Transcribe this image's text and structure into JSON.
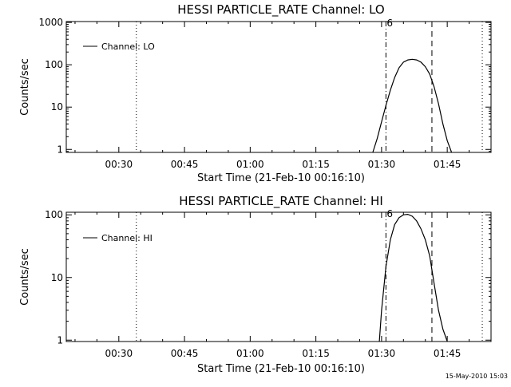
{
  "footer": {
    "timestamp": "15-May-2010 15:03"
  },
  "chart_data": [
    {
      "type": "line",
      "title": "HESSI PARTICLE_RATE Channel: LO",
      "xlabel": "Start Time (21-Feb-10 00:16:10)",
      "ylabel": "Counts/sec",
      "yscale": "log",
      "ylim": [
        0.85,
        1050
      ],
      "xlim_minutes": [
        18,
        115
      ],
      "x_ticks": [
        {
          "minute": 30,
          "label": "00:30"
        },
        {
          "minute": 45,
          "label": "00:45"
        },
        {
          "minute": 60,
          "label": "01:00"
        },
        {
          "minute": 75,
          "label": "01:15"
        },
        {
          "minute": 90,
          "label": "01:30"
        },
        {
          "minute": 105,
          "label": "01:45"
        }
      ],
      "y_ticks": [
        {
          "value": 1,
          "label": "1"
        },
        {
          "value": 10,
          "label": "10"
        },
        {
          "value": 100,
          "label": "100"
        },
        {
          "value": 1000,
          "label": "1000"
        }
      ],
      "marker_label": "6",
      "legend": "top-left",
      "series": [
        {
          "name": "Channel: LO",
          "x": [
            88.0,
            89.0,
            90.0,
            91.0,
            92.0,
            93.0,
            94.0,
            95.0,
            96.0,
            97.0,
            98.0,
            99.0,
            100.0,
            101.0,
            102.0,
            103.0,
            104.0,
            105.0,
            106.0
          ],
          "y": [
            0.85,
            1.8,
            4.5,
            11,
            25,
            50,
            85,
            115,
            130,
            135,
            130,
            115,
            90,
            60,
            30,
            12,
            4,
            1.6,
            0.85
          ]
        }
      ],
      "vlines": [
        {
          "minute": 34,
          "style": "dotted"
        },
        {
          "minute": 91,
          "style": "dashdot"
        },
        {
          "minute": 101.5,
          "style": "dashed"
        },
        {
          "minute": 113,
          "style": "dotted"
        }
      ]
    },
    {
      "type": "line",
      "title": "HESSI PARTICLE_RATE Channel: HI",
      "xlabel": "Start Time (21-Feb-10 00:16:10)",
      "ylabel": "Counts/sec",
      "yscale": "log",
      "ylim": [
        0.95,
        110
      ],
      "xlim_minutes": [
        18,
        115
      ],
      "x_ticks": [
        {
          "minute": 30,
          "label": "00:30"
        },
        {
          "minute": 45,
          "label": "00:45"
        },
        {
          "minute": 60,
          "label": "01:00"
        },
        {
          "minute": 75,
          "label": "01:15"
        },
        {
          "minute": 90,
          "label": "01:30"
        },
        {
          "minute": 105,
          "label": "01:45"
        }
      ],
      "y_ticks": [
        {
          "value": 1,
          "label": "1"
        },
        {
          "value": 10,
          "label": "10"
        },
        {
          "value": 100,
          "label": "100"
        }
      ],
      "marker_label": "6",
      "legend": "top-left",
      "series": [
        {
          "name": "Channel: HI",
          "x": [
            89.5,
            90.0,
            91.0,
            92.0,
            93.0,
            94.0,
            95.0,
            96.0,
            97.0,
            98.0,
            99.0,
            100.0,
            101.0,
            102.0,
            103.0,
            104.0,
            105.0
          ],
          "y": [
            0.95,
            3,
            15,
            40,
            70,
            90,
            100,
            102,
            95,
            80,
            60,
            40,
            22,
            8,
            3,
            1.5,
            0.95
          ]
        }
      ],
      "vlines": [
        {
          "minute": 34,
          "style": "dotted"
        },
        {
          "minute": 91,
          "style": "dashdot"
        },
        {
          "minute": 101.5,
          "style": "dashed"
        },
        {
          "minute": 113,
          "style": "dotted"
        }
      ]
    }
  ]
}
